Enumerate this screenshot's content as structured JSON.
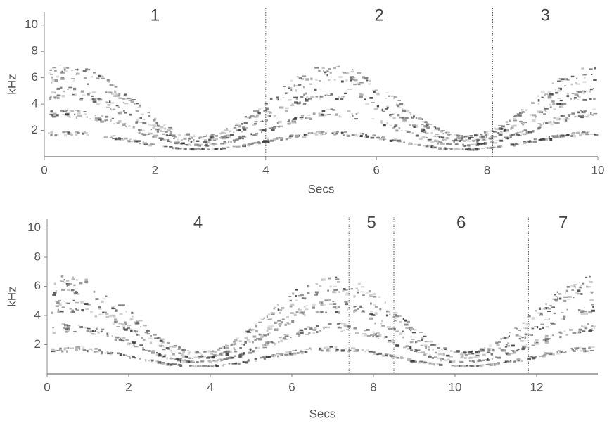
{
  "chart_data": [
    {
      "type": "spectrogram",
      "xlabel": "Secs",
      "ylabel": "kHz",
      "xlim": [
        0,
        10
      ],
      "ylim": [
        0,
        11
      ],
      "xticks": [
        0,
        2,
        4,
        6,
        8,
        10
      ],
      "yticks": [
        2,
        4,
        6,
        8,
        10
      ],
      "boundaries": [
        4,
        8.1
      ],
      "section_labels": [
        "1",
        "2",
        "3"
      ]
    },
    {
      "type": "spectrogram",
      "xlabel": "Secs",
      "ylabel": "kHz",
      "xlim": [
        0,
        13.5
      ],
      "ylim": [
        0,
        10.6
      ],
      "xticks": [
        0,
        2,
        4,
        6,
        8,
        10,
        12
      ],
      "yticks": [
        2,
        4,
        6,
        8,
        10
      ],
      "boundaries": [
        7.4,
        8.5,
        11.8
      ],
      "section_labels": [
        "4",
        "5",
        "6",
        "7"
      ]
    }
  ]
}
